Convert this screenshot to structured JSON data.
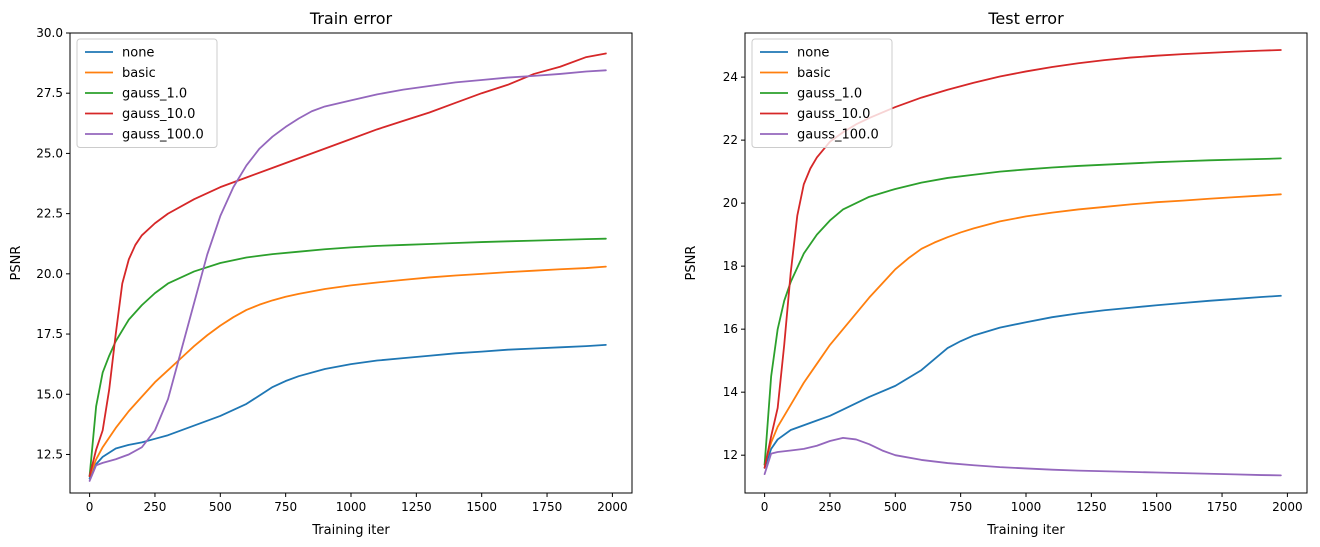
{
  "chart_data": [
    {
      "type": "line",
      "title": "Train error",
      "xlabel": "Training iter",
      "ylabel": "PSNR",
      "xlim": [
        -75,
        2075
      ],
      "ylim": [
        10.9,
        30.0
      ],
      "xticks": [
        0,
        250,
        500,
        750,
        1000,
        1250,
        1500,
        1750,
        2000
      ],
      "xtick_labels": [
        "0",
        "250",
        "500",
        "750",
        "1000",
        "1250",
        "1500",
        "1750",
        "2000"
      ],
      "yticks": [
        12.5,
        15.0,
        17.5,
        20.0,
        22.5,
        25.0,
        27.5,
        30.0
      ],
      "ytick_labels": [
        "12.5",
        "15.0",
        "17.5",
        "20.0",
        "22.5",
        "25.0",
        "27.5",
        "30.0"
      ],
      "grid": false,
      "legend": "top-left",
      "series": [
        {
          "name": "none",
          "color": "#1f77b4",
          "x": [
            0,
            25,
            50,
            100,
            150,
            200,
            250,
            300,
            400,
            500,
            600,
            650,
            700,
            750,
            800,
            900,
            1000,
            1100,
            1200,
            1300,
            1400,
            1500,
            1600,
            1700,
            1800,
            1900,
            1975
          ],
          "y": [
            11.5,
            12.1,
            12.4,
            12.75,
            12.9,
            13.0,
            13.15,
            13.3,
            13.7,
            14.1,
            14.6,
            14.95,
            15.3,
            15.55,
            15.75,
            16.05,
            16.25,
            16.4,
            16.5,
            16.6,
            16.7,
            16.77,
            16.85,
            16.9,
            16.95,
            17.0,
            17.05
          ]
        },
        {
          "name": "basic",
          "color": "#ff7f0e",
          "x": [
            0,
            25,
            50,
            100,
            150,
            200,
            250,
            300,
            350,
            400,
            450,
            500,
            550,
            600,
            650,
            700,
            750,
            800,
            900,
            1000,
            1100,
            1200,
            1300,
            1400,
            1500,
            1600,
            1700,
            1800,
            1900,
            1975
          ],
          "y": [
            11.6,
            12.3,
            12.8,
            13.6,
            14.3,
            14.9,
            15.5,
            16.0,
            16.5,
            17.0,
            17.45,
            17.85,
            18.2,
            18.5,
            18.72,
            18.9,
            19.05,
            19.17,
            19.37,
            19.52,
            19.64,
            19.75,
            19.85,
            19.93,
            20.0,
            20.07,
            20.13,
            20.19,
            20.24,
            20.3
          ]
        },
        {
          "name": "gauss_1.0",
          "color": "#2ca02c",
          "x": [
            0,
            25,
            50,
            75,
            100,
            150,
            200,
            250,
            300,
            400,
            500,
            600,
            700,
            800,
            900,
            1000,
            1100,
            1200,
            1300,
            1400,
            1500,
            1600,
            1700,
            1800,
            1900,
            1975
          ],
          "y": [
            11.6,
            14.5,
            15.9,
            16.6,
            17.2,
            18.1,
            18.7,
            19.2,
            19.6,
            20.1,
            20.45,
            20.68,
            20.82,
            20.92,
            21.02,
            21.1,
            21.16,
            21.2,
            21.24,
            21.28,
            21.32,
            21.35,
            21.38,
            21.41,
            21.44,
            21.46
          ]
        },
        {
          "name": "gauss_10.0",
          "color": "#d62728",
          "x": [
            0,
            25,
            50,
            75,
            100,
            125,
            150,
            175,
            200,
            250,
            300,
            400,
            500,
            600,
            700,
            800,
            900,
            1000,
            1100,
            1200,
            1300,
            1400,
            1500,
            1600,
            1700,
            1800,
            1900,
            1975
          ],
          "y": [
            11.6,
            12.7,
            13.5,
            15.2,
            17.5,
            19.6,
            20.6,
            21.2,
            21.6,
            22.1,
            22.5,
            23.1,
            23.6,
            24.0,
            24.4,
            24.8,
            25.2,
            25.6,
            26.0,
            26.35,
            26.7,
            27.1,
            27.5,
            27.85,
            28.3,
            28.6,
            29.0,
            29.15
          ]
        },
        {
          "name": "gauss_100.0",
          "color": "#9467bd",
          "x": [
            0,
            25,
            50,
            100,
            150,
            200,
            250,
            300,
            350,
            400,
            450,
            500,
            550,
            600,
            650,
            700,
            750,
            800,
            850,
            900,
            1000,
            1100,
            1200,
            1300,
            1400,
            1500,
            1600,
            1700,
            1800,
            1900,
            1975
          ],
          "y": [
            11.4,
            12.05,
            12.15,
            12.3,
            12.5,
            12.8,
            13.5,
            14.8,
            16.8,
            18.8,
            20.8,
            22.4,
            23.6,
            24.5,
            25.2,
            25.7,
            26.1,
            26.45,
            26.75,
            26.95,
            27.2,
            27.45,
            27.65,
            27.8,
            27.95,
            28.05,
            28.15,
            28.22,
            28.3,
            28.4,
            28.45
          ]
        }
      ]
    },
    {
      "type": "line",
      "title": "Test error",
      "xlabel": "Training iter",
      "ylabel": "PSNR",
      "xlim": [
        -75,
        2075
      ],
      "ylim": [
        10.8,
        25.4
      ],
      "xticks": [
        0,
        250,
        500,
        750,
        1000,
        1250,
        1500,
        1750,
        2000
      ],
      "xtick_labels": [
        "0",
        "250",
        "500",
        "750",
        "1000",
        "1250",
        "1500",
        "1750",
        "2000"
      ],
      "yticks": [
        12,
        14,
        16,
        18,
        20,
        22,
        24
      ],
      "ytick_labels": [
        "12",
        "14",
        "16",
        "18",
        "20",
        "22",
        "24"
      ],
      "grid": false,
      "legend": "top-left",
      "series": [
        {
          "name": "none",
          "color": "#1f77b4",
          "x": [
            0,
            25,
            50,
            100,
            150,
            200,
            250,
            300,
            400,
            500,
            600,
            650,
            700,
            750,
            800,
            900,
            1000,
            1100,
            1200,
            1300,
            1400,
            1500,
            1600,
            1700,
            1800,
            1900,
            1975
          ],
          "y": [
            11.6,
            12.2,
            12.5,
            12.8,
            12.95,
            13.1,
            13.25,
            13.45,
            13.85,
            14.2,
            14.7,
            15.05,
            15.4,
            15.62,
            15.8,
            16.05,
            16.22,
            16.38,
            16.5,
            16.6,
            16.68,
            16.76,
            16.83,
            16.9,
            16.96,
            17.02,
            17.06
          ]
        },
        {
          "name": "basic",
          "color": "#ff7f0e",
          "x": [
            0,
            25,
            50,
            100,
            150,
            200,
            250,
            300,
            350,
            400,
            450,
            500,
            550,
            600,
            650,
            700,
            750,
            800,
            900,
            1000,
            1100,
            1200,
            1300,
            1400,
            1500,
            1600,
            1700,
            1800,
            1900,
            1975
          ],
          "y": [
            11.7,
            12.4,
            12.9,
            13.6,
            14.3,
            14.9,
            15.5,
            16.0,
            16.5,
            17.0,
            17.45,
            17.9,
            18.25,
            18.55,
            18.75,
            18.92,
            19.07,
            19.2,
            19.42,
            19.58,
            19.7,
            19.8,
            19.88,
            19.96,
            20.03,
            20.08,
            20.14,
            20.19,
            20.24,
            20.28
          ]
        },
        {
          "name": "gauss_1.0",
          "color": "#2ca02c",
          "x": [
            0,
            25,
            50,
            75,
            100,
            150,
            200,
            250,
            300,
            400,
            500,
            600,
            700,
            800,
            900,
            1000,
            1100,
            1200,
            1300,
            1400,
            1500,
            1600,
            1700,
            1800,
            1900,
            1975
          ],
          "y": [
            11.7,
            14.5,
            16.0,
            16.9,
            17.5,
            18.4,
            19.0,
            19.45,
            19.8,
            20.2,
            20.45,
            20.65,
            20.8,
            20.9,
            21.0,
            21.07,
            21.13,
            21.18,
            21.22,
            21.26,
            21.3,
            21.33,
            21.36,
            21.38,
            21.4,
            21.42
          ]
        },
        {
          "name": "gauss_10.0",
          "color": "#d62728",
          "x": [
            0,
            25,
            50,
            75,
            100,
            125,
            150,
            175,
            200,
            250,
            300,
            350,
            400,
            500,
            600,
            700,
            800,
            900,
            1000,
            1100,
            1200,
            1300,
            1400,
            1500,
            1600,
            1700,
            1800,
            1900,
            1975
          ],
          "y": [
            11.6,
            12.6,
            13.5,
            15.5,
            17.8,
            19.6,
            20.6,
            21.1,
            21.45,
            21.95,
            22.25,
            22.5,
            22.7,
            23.05,
            23.35,
            23.6,
            23.82,
            24.02,
            24.18,
            24.32,
            24.44,
            24.54,
            24.62,
            24.68,
            24.73,
            24.77,
            24.81,
            24.84,
            24.86
          ]
        },
        {
          "name": "gauss_100.0",
          "color": "#9467bd",
          "x": [
            0,
            25,
            50,
            100,
            150,
            200,
            250,
            300,
            350,
            400,
            450,
            500,
            600,
            700,
            800,
            900,
            1000,
            1100,
            1200,
            1300,
            1400,
            1500,
            1600,
            1700,
            1800,
            1900,
            1975
          ],
          "y": [
            11.4,
            12.05,
            12.1,
            12.15,
            12.2,
            12.3,
            12.45,
            12.55,
            12.5,
            12.35,
            12.15,
            12.0,
            11.85,
            11.75,
            11.68,
            11.62,
            11.58,
            11.54,
            11.51,
            11.49,
            11.47,
            11.45,
            11.43,
            11.41,
            11.39,
            11.37,
            11.36
          ]
        }
      ]
    }
  ]
}
